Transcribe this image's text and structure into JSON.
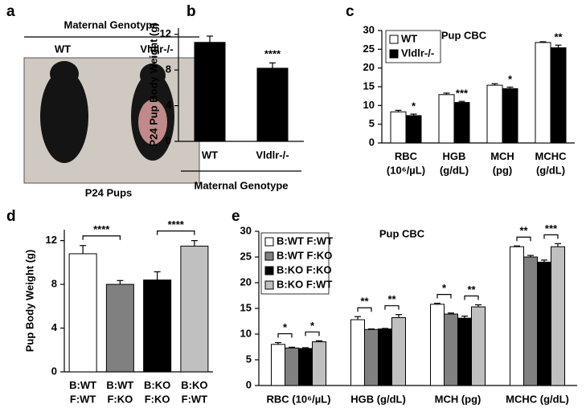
{
  "photo_panel": {
    "panel_label": "a",
    "header": "Maternal Genotype",
    "labels": [
      "WT",
      "Vldlr-/-"
    ],
    "caption": "P24 Pups"
  },
  "chart_data": [
    {
      "type": "bar",
      "panel_label": "b",
      "ylabel": "P24 Pup Body Weight (g)",
      "xlabel": "Maternal Genotype",
      "categories": [
        "WT",
        "Vldlr-/-"
      ],
      "values": [
        11.1,
        8.2
      ],
      "errors": [
        0.7,
        0.6
      ],
      "color": "#000000",
      "ylim": [
        0,
        12.7
      ],
      "yticks": [
        0,
        4,
        8,
        12
      ],
      "annotation": {
        "text": "****",
        "category": "Vldlr-/-"
      }
    },
    {
      "type": "grouped_bar",
      "panel_label": "c",
      "title": "Pup CBC",
      "categories": [
        "RBC\n(10⁶/µL)",
        "HGB\n(g/dL)",
        "MCH\n(pg)",
        "MCHC\n(g/dL)"
      ],
      "series": [
        {
          "name": "WT",
          "color": "#ffffff",
          "values": [
            8.3,
            12.9,
            15.4,
            26.8
          ],
          "errors": [
            0.4,
            0.4,
            0.4,
            0.2
          ]
        },
        {
          "name": "Vldlr-/-",
          "color": "#000000",
          "values": [
            7.3,
            10.8,
            14.5,
            25.4
          ],
          "errors": [
            0.4,
            0.3,
            0.4,
            0.7
          ]
        }
      ],
      "sig_labels": [
        "*",
        "***",
        "*",
        "**"
      ],
      "ylim": [
        0,
        30
      ],
      "yticks": [
        0,
        5,
        10,
        15,
        20,
        25,
        30
      ],
      "legend": "upper left"
    },
    {
      "type": "bar",
      "panel_label": "d",
      "ylabel": "Pup Body Weight (g)",
      "categories": [
        "B:WT\nF:WT",
        "B:WT\nF:KO",
        "B:KO\nF:KO",
        "B:KO\nF:WT"
      ],
      "values": [
        10.8,
        8.0,
        8.4,
        11.5
      ],
      "errors": [
        0.75,
        0.35,
        0.75,
        0.5
      ],
      "colors": [
        "#ffffff",
        "#808080",
        "#000000",
        "#c0c0c0"
      ],
      "ylim": [
        0,
        13
      ],
      "yticks": [
        0,
        4,
        8,
        12
      ],
      "comparison_labels": [
        "****",
        "****"
      ]
    },
    {
      "type": "grouped_bar",
      "panel_label": "e",
      "title": "Pup CBC",
      "categories": [
        "RBC (10⁶/µL)",
        "HGB (g/dL)",
        "MCH (pg)",
        "MCHC (g/dL)"
      ],
      "series": [
        {
          "name": "B:WT F:WT",
          "color": "#ffffff",
          "values": [
            8.0,
            12.8,
            15.8,
            27.0
          ],
          "errors": [
            0.35,
            0.6,
            0.2,
            0.15
          ]
        },
        {
          "name": "B:WT F:KO",
          "color": "#808080",
          "values": [
            7.3,
            10.9,
            13.9,
            25.0
          ],
          "errors": [
            0.15,
            0.1,
            0.2,
            0.3
          ]
        },
        {
          "name": "B:KO F:KO",
          "color": "#000000",
          "values": [
            7.2,
            11.0,
            13.1,
            24.0
          ],
          "errors": [
            0.15,
            0.1,
            0.4,
            0.4
          ]
        },
        {
          "name": "B:KO F:WT",
          "color": "#c0c0c0",
          "values": [
            8.5,
            13.2,
            15.3,
            27.0
          ],
          "errors": [
            0.2,
            0.6,
            0.4,
            0.6
          ]
        }
      ],
      "comparison_labels": [
        [
          "*",
          "*"
        ],
        [
          "**",
          "**"
        ],
        [
          "*",
          "**"
        ],
        [
          "**",
          "***"
        ]
      ],
      "ylim": [
        0,
        30
      ],
      "yticks": [
        0,
        5,
        10,
        15,
        20,
        25,
        30
      ],
      "legend": "upper left"
    }
  ]
}
